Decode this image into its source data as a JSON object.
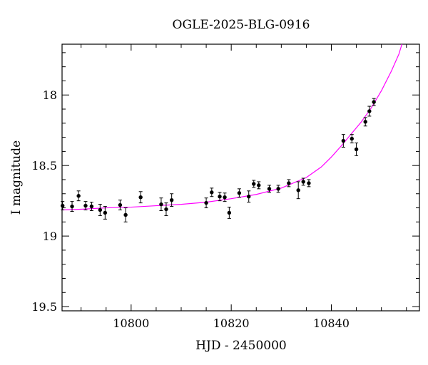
{
  "chart_data": {
    "type": "scatter",
    "title": "OGLE-2025-BLG-0916",
    "xlabel": "HJD - 2450000",
    "ylabel": "I magnitude",
    "xlim": [
      10786.2,
      10857.6
    ],
    "ylim": [
      19.53,
      17.64
    ],
    "y_inverted": true,
    "x_ticks": [
      10800,
      10820,
      10840
    ],
    "x_tick_labels": [
      "10800",
      "10820",
      "10840"
    ],
    "y_ticks": [
      18,
      18.5,
      19,
      19.5
    ],
    "y_tick_labels": [
      "18",
      "18.5",
      "19",
      "19.5"
    ],
    "grid": false,
    "colors": {
      "data": "#000000",
      "model": "#ff00ff"
    },
    "series": [
      {
        "kind": "observations",
        "x": [
          10786.3,
          10788.2,
          10789.5,
          10790.9,
          10792.1,
          10793.8,
          10794.8,
          10797.8,
          10798.9,
          10801.9,
          10806.0,
          10807.0,
          10808.1,
          10815.0,
          10816.1,
          10817.7,
          10818.7,
          10819.6,
          10821.6,
          10823.5,
          10824.5,
          10825.5,
          10827.6,
          10829.4,
          10831.5,
          10833.4,
          10834.4,
          10835.5,
          10842.4,
          10844.1,
          10845.0,
          10846.8,
          10847.6,
          10848.5
        ],
        "y": [
          18.785,
          18.79,
          18.715,
          18.785,
          18.79,
          18.815,
          18.835,
          18.78,
          18.85,
          18.725,
          18.775,
          18.81,
          18.745,
          18.765,
          18.69,
          18.72,
          18.725,
          18.835,
          18.695,
          18.72,
          18.63,
          18.64,
          18.665,
          18.665,
          18.625,
          18.675,
          18.615,
          18.625,
          18.325,
          18.31,
          18.385,
          18.19,
          18.115,
          18.05
        ],
        "yerr": [
          0.03,
          0.035,
          0.035,
          0.03,
          0.03,
          0.04,
          0.045,
          0.035,
          0.05,
          0.04,
          0.045,
          0.045,
          0.045,
          0.035,
          0.03,
          0.03,
          0.03,
          0.04,
          0.03,
          0.04,
          0.025,
          0.025,
          0.025,
          0.025,
          0.025,
          0.06,
          0.025,
          0.025,
          0.045,
          0.03,
          0.045,
          0.03,
          0.035,
          0.025
        ]
      },
      {
        "kind": "model",
        "x": [
          10786.2,
          10790,
          10795,
          10800,
          10805,
          10810,
          10815,
          10820,
          10825,
          10830,
          10835,
          10838,
          10840,
          10842,
          10844,
          10846,
          10848,
          10850,
          10852,
          10853.5,
          10854.1
        ],
        "y": [
          18.815,
          18.81,
          18.8,
          18.795,
          18.785,
          18.775,
          18.76,
          18.735,
          18.705,
          18.66,
          18.585,
          18.51,
          18.44,
          18.36,
          18.275,
          18.19,
          18.09,
          17.97,
          17.83,
          17.71,
          17.64
        ]
      }
    ]
  }
}
